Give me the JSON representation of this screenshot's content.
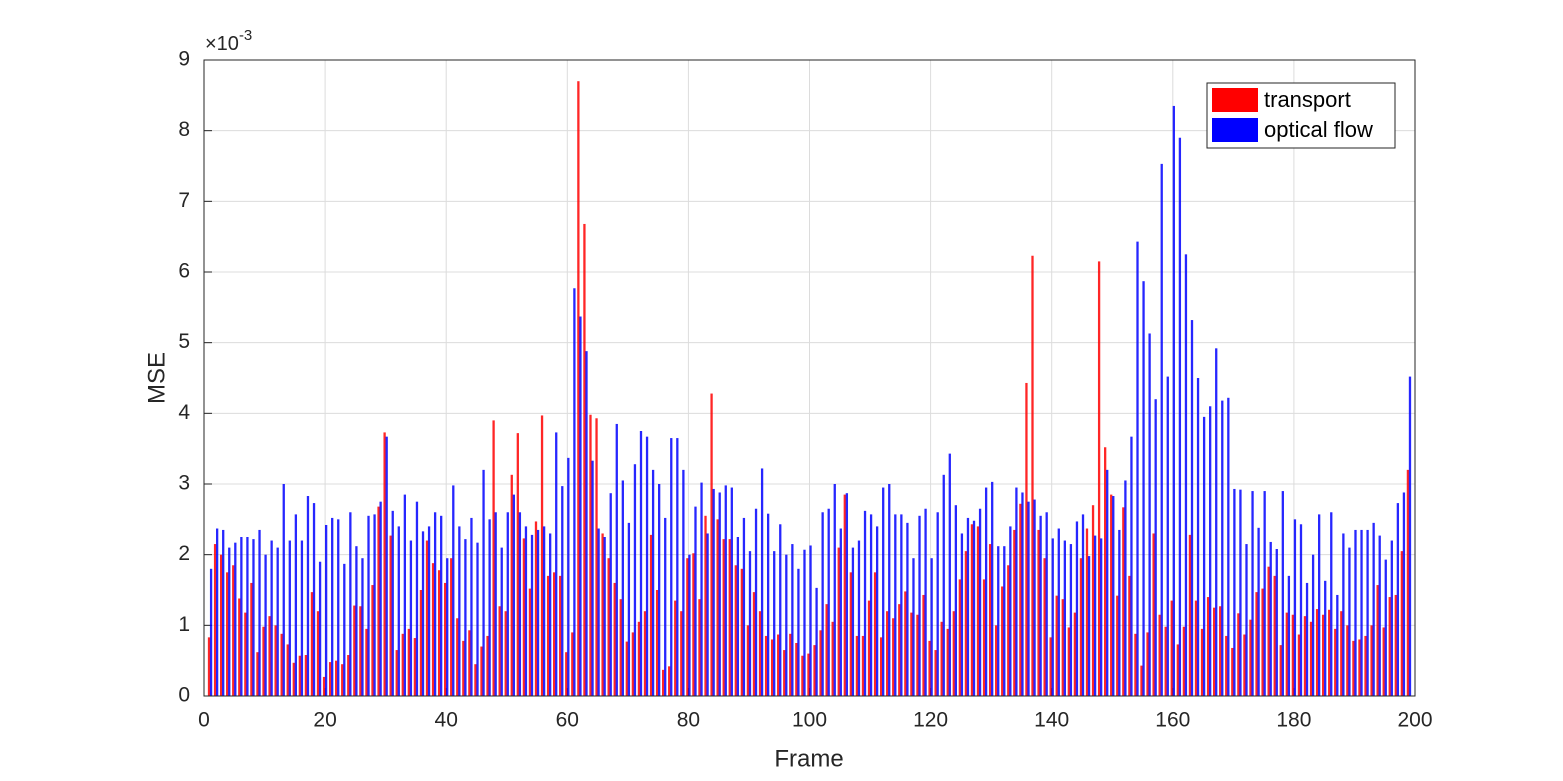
{
  "chart_data": {
    "type": "bar",
    "x_label": "Frame",
    "y_label": "MSE",
    "y_multiplier": {
      "base": "×10",
      "exponent": "-3"
    },
    "x": [
      1,
      2,
      3,
      4,
      5,
      6,
      7,
      8,
      9,
      10,
      11,
      12,
      13,
      14,
      15,
      16,
      17,
      18,
      19,
      20,
      21,
      22,
      23,
      24,
      25,
      26,
      27,
      28,
      29,
      30,
      31,
      32,
      33,
      34,
      35,
      36,
      37,
      38,
      39,
      40,
      41,
      42,
      43,
      44,
      45,
      46,
      47,
      48,
      49,
      50,
      51,
      52,
      53,
      54,
      55,
      56,
      57,
      58,
      59,
      60,
      61,
      62,
      63,
      64,
      65,
      66,
      67,
      68,
      69,
      70,
      71,
      72,
      73,
      74,
      75,
      76,
      77,
      78,
      79,
      80,
      81,
      82,
      83,
      84,
      85,
      86,
      87,
      88,
      89,
      90,
      91,
      92,
      93,
      94,
      95,
      96,
      97,
      98,
      99,
      100,
      101,
      102,
      103,
      104,
      105,
      106,
      107,
      108,
      109,
      110,
      111,
      112,
      113,
      114,
      115,
      116,
      117,
      118,
      119,
      120,
      121,
      122,
      123,
      124,
      125,
      126,
      127,
      128,
      129,
      130,
      131,
      132,
      133,
      134,
      135,
      136,
      137,
      138,
      139,
      140,
      141,
      142,
      143,
      144,
      145,
      146,
      147,
      148,
      149,
      150,
      151,
      152,
      153,
      154,
      155,
      156,
      157,
      158,
      159,
      160,
      161,
      162,
      163,
      164,
      165,
      166,
      167,
      168,
      169,
      170,
      171,
      172,
      173,
      174,
      175,
      176,
      177,
      178,
      179,
      180,
      181,
      182,
      183,
      184,
      185,
      186,
      187,
      188,
      189,
      190,
      191,
      192,
      193,
      194,
      195,
      196,
      197,
      198,
      199
    ],
    "series": [
      {
        "name": "transport",
        "color": "#ff0000",
        "values": [
          0.83,
          2.15,
          2.0,
          1.75,
          1.85,
          1.38,
          1.18,
          1.6,
          0.62,
          0.98,
          1.13,
          1.0,
          0.88,
          0.73,
          0.47,
          0.57,
          0.58,
          1.47,
          1.2,
          0.27,
          0.48,
          0.5,
          0.45,
          0.58,
          1.28,
          1.27,
          0.95,
          1.57,
          2.68,
          3.73,
          2.27,
          0.65,
          0.88,
          0.95,
          0.82,
          1.5,
          2.2,
          1.88,
          1.78,
          1.6,
          1.95,
          1.1,
          0.78,
          0.93,
          0.45,
          0.7,
          0.85,
          3.9,
          1.27,
          1.2,
          3.13,
          3.72,
          2.23,
          1.52,
          2.47,
          3.97,
          1.7,
          1.75,
          1.7,
          0.62,
          0.9,
          8.7,
          6.68,
          3.98,
          3.93,
          2.3,
          1.95,
          1.6,
          1.37,
          0.77,
          0.9,
          1.05,
          1.2,
          2.28,
          1.5,
          0.37,
          0.42,
          1.35,
          1.2,
          1.95,
          2.02,
          1.37,
          2.55,
          4.28,
          2.5,
          2.22,
          2.22,
          1.85,
          1.8,
          1.0,
          1.47,
          1.2,
          0.85,
          0.8,
          0.87,
          0.65,
          0.88,
          0.75,
          0.57,
          0.6,
          0.72,
          0.93,
          1.3,
          1.05,
          2.1,
          2.85,
          1.75,
          0.85,
          0.85,
          1.35,
          1.75,
          0.83,
          1.2,
          1.1,
          1.3,
          1.48,
          1.18,
          1.15,
          1.43,
          0.78,
          0.65,
          1.05,
          0.95,
          1.2,
          1.65,
          2.05,
          2.43,
          2.4,
          1.65,
          2.15,
          1.0,
          1.55,
          1.85,
          2.35,
          2.72,
          4.43,
          6.23,
          2.35,
          1.95,
          0.83,
          1.42,
          1.37,
          0.97,
          1.18,
          1.95,
          2.37,
          2.7,
          6.15,
          3.52,
          2.85,
          1.42,
          2.67,
          1.7,
          0.88,
          0.43,
          0.9,
          2.3,
          1.15,
          0.98,
          1.35,
          0.73,
          0.98,
          2.28,
          1.35,
          0.95,
          1.4,
          1.25,
          1.27,
          0.85,
          0.68,
          1.17,
          0.87,
          1.08,
          1.47,
          1.52,
          1.83,
          1.7,
          0.72,
          1.18,
          1.15,
          0.87,
          1.13,
          1.05,
          1.23,
          1.15,
          1.22,
          0.95,
          1.2,
          1.0,
          0.78,
          0.8,
          0.85,
          1.0,
          1.57,
          0.97,
          1.4,
          1.43,
          2.05,
          3.2
        ]
      },
      {
        "name": "optical flow",
        "color": "#0000ff",
        "values": [
          1.8,
          2.37,
          2.35,
          2.1,
          2.17,
          2.25,
          2.25,
          2.22,
          2.35,
          2.0,
          2.2,
          2.1,
          3.0,
          2.2,
          2.57,
          2.2,
          2.83,
          2.73,
          1.9,
          2.42,
          2.52,
          2.5,
          1.87,
          2.6,
          2.12,
          1.95,
          2.55,
          2.57,
          2.75,
          3.67,
          2.62,
          2.4,
          2.85,
          2.2,
          2.75,
          2.33,
          2.4,
          2.6,
          2.55,
          1.95,
          2.98,
          2.4,
          2.22,
          2.52,
          2.17,
          3.2,
          2.5,
          2.6,
          2.1,
          2.6,
          2.85,
          2.6,
          2.4,
          2.28,
          2.35,
          2.4,
          2.3,
          3.73,
          2.97,
          3.37,
          5.77,
          5.37,
          4.88,
          3.33,
          2.37,
          2.25,
          2.87,
          3.85,
          3.05,
          2.45,
          3.28,
          3.75,
          3.67,
          3.2,
          3.0,
          2.52,
          3.65,
          3.65,
          3.2,
          2.0,
          2.68,
          3.02,
          2.3,
          2.93,
          2.88,
          2.98,
          2.95,
          2.25,
          2.52,
          2.05,
          2.65,
          3.22,
          2.58,
          2.05,
          2.43,
          2.0,
          2.15,
          1.8,
          2.07,
          2.13,
          1.53,
          2.6,
          2.65,
          3.0,
          2.37,
          2.87,
          2.1,
          2.2,
          2.62,
          2.57,
          2.4,
          2.95,
          3.0,
          2.57,
          2.57,
          2.45,
          1.95,
          2.55,
          2.65,
          1.95,
          2.6,
          3.13,
          3.43,
          2.7,
          2.3,
          2.52,
          2.48,
          2.65,
          2.95,
          3.03,
          2.12,
          2.12,
          2.4,
          2.95,
          2.88,
          2.75,
          2.78,
          2.55,
          2.6,
          2.23,
          2.37,
          2.2,
          2.15,
          2.47,
          2.57,
          1.98,
          2.27,
          2.23,
          3.2,
          2.83,
          2.35,
          3.05,
          3.67,
          6.43,
          5.87,
          5.13,
          4.2,
          7.53,
          4.52,
          8.35,
          7.9,
          6.25,
          5.32,
          4.5,
          3.95,
          4.1,
          4.92,
          4.18,
          4.22,
          2.93,
          2.92,
          2.15,
          2.9,
          2.38,
          2.9,
          2.18,
          2.08,
          2.9,
          1.7,
          2.5,
          2.43,
          1.6,
          2.0,
          2.57,
          1.63,
          2.6,
          1.43,
          2.3,
          2.1,
          2.35,
          2.35,
          2.35,
          2.45,
          2.27,
          1.93,
          2.2,
          2.73,
          2.88,
          4.52
        ]
      }
    ],
    "xlim": [
      0,
      200
    ],
    "xticks": [
      0,
      20,
      40,
      60,
      80,
      100,
      120,
      140,
      160,
      180,
      200
    ],
    "ylim": [
      0,
      9
    ],
    "yticks": [
      0,
      1,
      2,
      3,
      4,
      5,
      6,
      7,
      8,
      9
    ],
    "grid": true,
    "legend": "upper right"
  }
}
